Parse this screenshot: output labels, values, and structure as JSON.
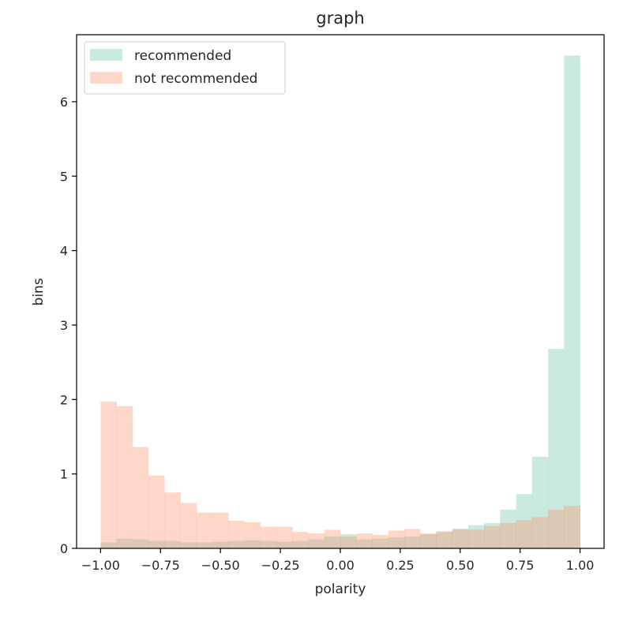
{
  "chart_data": {
    "type": "bar",
    "title": "graph",
    "xlabel": "polarity",
    "ylabel": "bins",
    "xlim": [
      -1.1,
      1.1
    ],
    "ylim": [
      0,
      6.9
    ],
    "xticks": [
      -1.0,
      -0.75,
      -0.5,
      -0.25,
      0.0,
      0.25,
      0.5,
      0.75,
      1.0
    ],
    "xtick_labels": [
      "−1.00",
      "−0.75",
      "−0.50",
      "−0.25",
      "0.00",
      "0.25",
      "0.50",
      "0.75",
      "1.00"
    ],
    "yticks": [
      0,
      1,
      2,
      3,
      4,
      5,
      6
    ],
    "ytick_labels": [
      "0",
      "1",
      "2",
      "3",
      "4",
      "5",
      "6"
    ],
    "grid": false,
    "legend_position": "top-left",
    "bin_edges": [
      -1.0,
      -0.9333,
      -0.8667,
      -0.8,
      -0.7333,
      -0.6667,
      -0.6,
      -0.5333,
      -0.4667,
      -0.4,
      -0.3333,
      -0.2667,
      -0.2,
      -0.1333,
      -0.0667,
      0.0,
      0.0667,
      0.1333,
      0.2,
      0.2667,
      0.3333,
      0.4,
      0.4667,
      0.5333,
      0.6,
      0.6667,
      0.7333,
      0.8,
      0.8667,
      0.9333,
      1.0
    ],
    "series": [
      {
        "name": "recommended",
        "color": "#66c2a5",
        "values": [
          0.08,
          0.13,
          0.12,
          0.1,
          0.1,
          0.08,
          0.08,
          0.09,
          0.1,
          0.11,
          0.1,
          0.09,
          0.1,
          0.12,
          0.16,
          0.19,
          0.12,
          0.13,
          0.15,
          0.16,
          0.19,
          0.22,
          0.26,
          0.31,
          0.34,
          0.52,
          0.73,
          1.23,
          2.68,
          6.62
        ]
      },
      {
        "name": "not recommended",
        "color": "#fc8d62",
        "values": [
          1.97,
          1.91,
          1.36,
          0.98,
          0.75,
          0.61,
          0.48,
          0.48,
          0.37,
          0.35,
          0.29,
          0.29,
          0.22,
          0.2,
          0.25,
          0.16,
          0.2,
          0.18,
          0.24,
          0.26,
          0.2,
          0.23,
          0.26,
          0.25,
          0.3,
          0.34,
          0.38,
          0.42,
          0.52,
          0.57
        ]
      }
    ]
  }
}
